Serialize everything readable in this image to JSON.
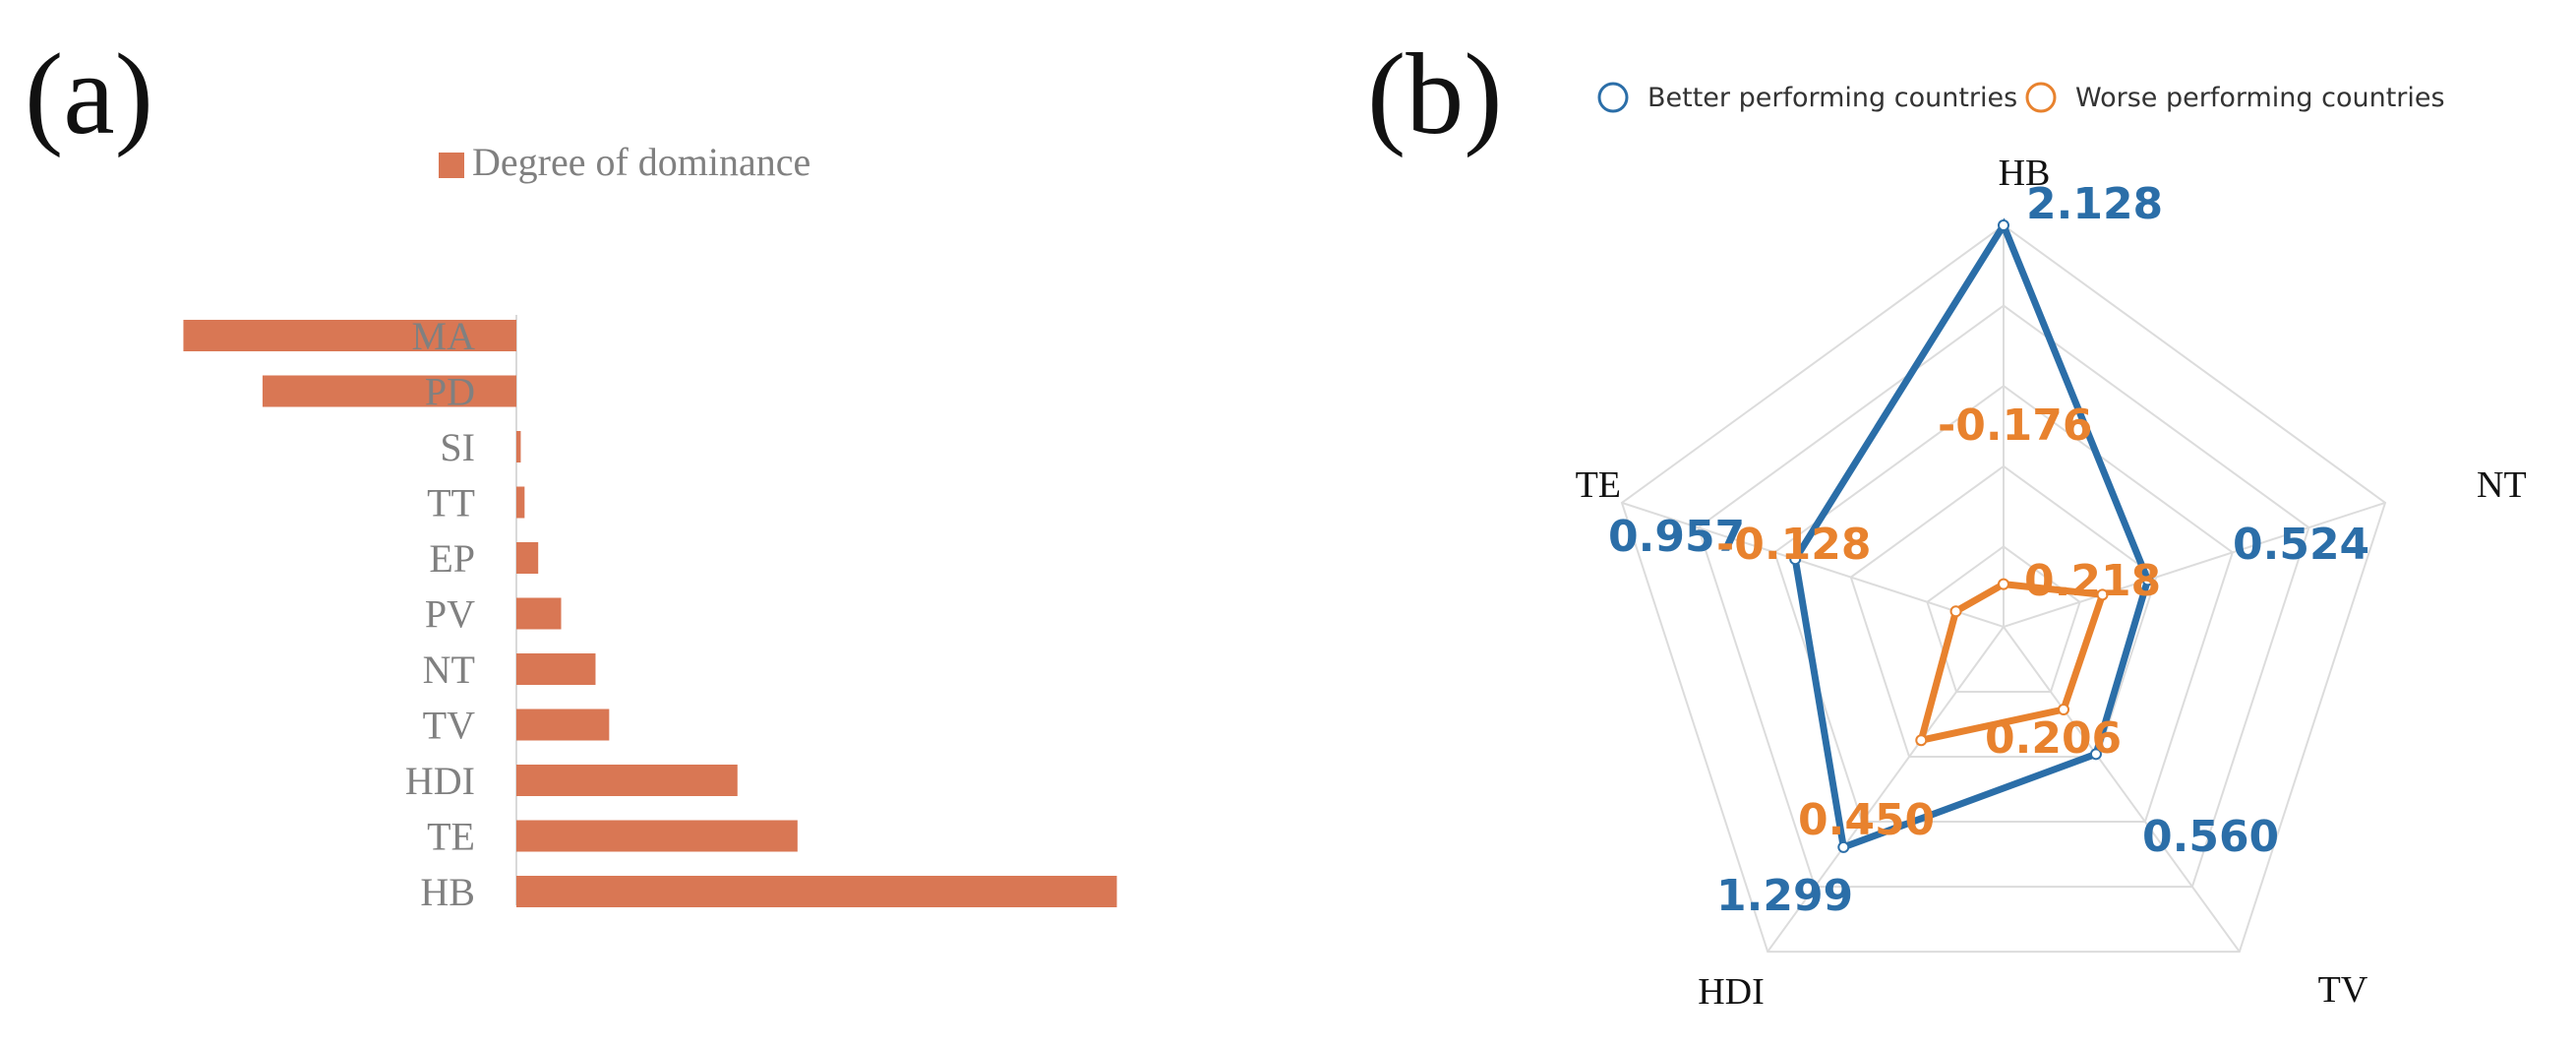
{
  "panels": {
    "a_label": "(a)",
    "b_label": "(b)"
  },
  "chart_data": [
    {
      "type": "bar",
      "orientation": "horizontal",
      "legend": [
        "Degree of dominance"
      ],
      "legend_placement": "top",
      "categories": [
        "MA",
        "PD",
        "SI",
        "TT",
        "EP",
        "PV",
        "NT",
        "TV",
        "HDI",
        "TE",
        "HB"
      ],
      "series": [
        {
          "name": "Degree of dominance",
          "values": [
            -0.61,
            -0.465,
            0.008,
            0.015,
            0.04,
            0.082,
            0.145,
            0.17,
            0.405,
            0.515,
            1.1
          ]
        }
      ],
      "grid": false,
      "colors": {
        "bar": "#D97754",
        "text": "#808080",
        "axis": "#d9d9d9"
      }
    },
    {
      "type": "radar",
      "axes": [
        "HB",
        "NT",
        "TV",
        "HDI",
        "TE"
      ],
      "rmax": 2.128,
      "rings": 5,
      "legend_placement": "top",
      "series": [
        {
          "name": "Better performing countries",
          "values": [
            2.128,
            0.524,
            0.56,
            1.299,
            0.957
          ],
          "labels": [
            "2.128",
            "0.524",
            "0.560",
            "1.299",
            "0.957"
          ],
          "color": "#2B6EA8"
        },
        {
          "name": "Worse performing countries",
          "values": [
            -0.176,
            0.218,
            0.206,
            0.45,
            -0.128
          ],
          "labels": [
            "-0.176",
            "0.218",
            "0.206",
            "0.450",
            "-0.128"
          ],
          "color": "#E8822E"
        }
      ],
      "grid": true,
      "colors": {
        "grid": "#dcdcdc",
        "axis_label": "#111111"
      }
    }
  ]
}
